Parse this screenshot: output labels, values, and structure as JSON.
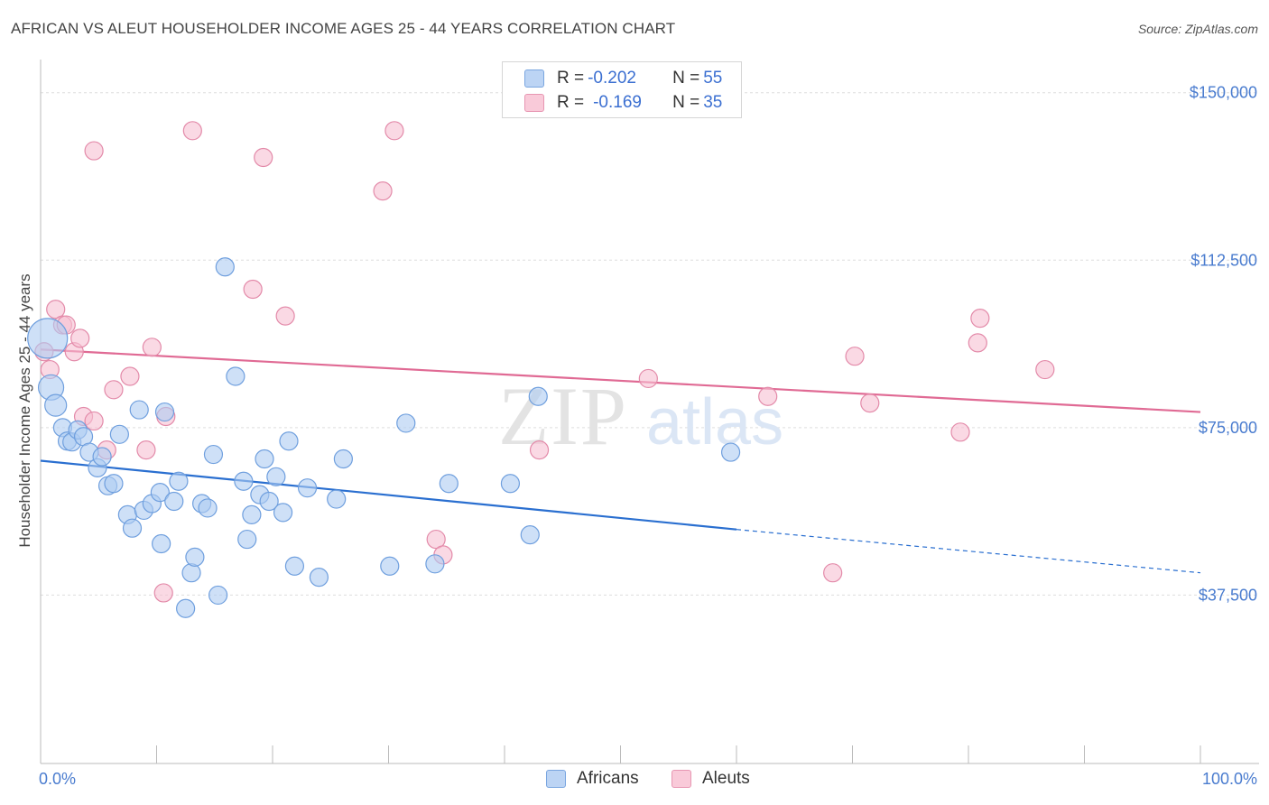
{
  "title": "AFRICAN VS ALEUT HOUSEHOLDER INCOME AGES 25 - 44 YEARS CORRELATION CHART",
  "source": "Source: ZipAtlas.com",
  "watermark": {
    "zip": "ZIP",
    "atlas": "atlas"
  },
  "colors": {
    "africans_fill": "#aecbf2",
    "africans_stroke": "#6f9fde",
    "africans_line": "#2a6fd0",
    "aleuts_fill": "#f7c0d2",
    "aleuts_stroke": "#e38aa9",
    "aleuts_line": "#e06a94",
    "tick_text": "#4a7ccf",
    "grid": "#dddddd"
  },
  "legend": {
    "rows": [
      {
        "r_label": "R = ",
        "r_value": "-0.202",
        "n_label": "N = ",
        "n_value": "55"
      },
      {
        "r_label": "R = ",
        "r_value": "-0.169",
        "n_label": "N = ",
        "n_value": "35"
      }
    ],
    "bottom": [
      "Africans",
      "Aleuts"
    ]
  },
  "chart_data": {
    "type": "scatter",
    "title": "AFRICAN VS ALEUT HOUSEHOLDER INCOME AGES 25 - 44 YEARS CORRELATION CHART",
    "xlabel": "",
    "ylabel": "Householder Income Ages 25 - 44 years",
    "xlim": [
      0,
      100
    ],
    "ylim": [
      0,
      155000
    ],
    "x_ticks": [
      "0.0%",
      "100.0%"
    ],
    "y_ticks": [
      {
        "value": 37500,
        "label": "$37,500"
      },
      {
        "value": 75000,
        "label": "$75,000"
      },
      {
        "value": 112500,
        "label": "$112,500"
      },
      {
        "value": 150000,
        "label": "$150,000"
      }
    ],
    "grid": true,
    "series": [
      {
        "name": "Africans",
        "trend": {
          "x0": 0,
          "y0": 67600,
          "x1": 60,
          "y1": 52200,
          "x_dashed_end": 100,
          "y_dashed_end": 42500
        },
        "points": [
          [
            0.6,
            95000,
            22
          ],
          [
            0.9,
            84000,
            14
          ],
          [
            1.3,
            80000,
            12
          ],
          [
            1.9,
            75000,
            10
          ],
          [
            2.3,
            72000,
            10
          ],
          [
            2.7,
            71800,
            10
          ],
          [
            3.2,
            74500,
            10
          ],
          [
            3.7,
            73000,
            10
          ],
          [
            4.2,
            69500,
            10
          ],
          [
            4.9,
            66000,
            10
          ],
          [
            5.3,
            68500,
            10
          ],
          [
            5.8,
            62000,
            10
          ],
          [
            6.3,
            62500,
            10
          ],
          [
            6.8,
            73500,
            10
          ],
          [
            7.5,
            55500,
            10
          ],
          [
            7.9,
            52500,
            10
          ],
          [
            8.5,
            79000,
            10
          ],
          [
            8.9,
            56500,
            10
          ],
          [
            9.6,
            58000,
            10
          ],
          [
            10.3,
            60500,
            10
          ],
          [
            10.4,
            49000,
            10
          ],
          [
            10.7,
            78500,
            10
          ],
          [
            11.5,
            58500,
            10
          ],
          [
            11.9,
            63000,
            10
          ],
          [
            12.5,
            34500,
            10
          ],
          [
            13.0,
            42500,
            10
          ],
          [
            13.3,
            46000,
            10
          ],
          [
            13.9,
            58000,
            10
          ],
          [
            14.4,
            57000,
            10
          ],
          [
            14.9,
            69000,
            10
          ],
          [
            15.3,
            37500,
            10
          ],
          [
            15.9,
            111000,
            10
          ],
          [
            16.8,
            86500,
            10
          ],
          [
            17.5,
            63000,
            10
          ],
          [
            17.8,
            50000,
            10
          ],
          [
            18.2,
            55500,
            10
          ],
          [
            18.9,
            60000,
            10
          ],
          [
            19.3,
            68000,
            10
          ],
          [
            19.7,
            58500,
            10
          ],
          [
            20.3,
            64000,
            10
          ],
          [
            20.9,
            56000,
            10
          ],
          [
            21.4,
            72000,
            10
          ],
          [
            21.9,
            44000,
            10
          ],
          [
            23.0,
            61500,
            10
          ],
          [
            24.0,
            41500,
            10
          ],
          [
            25.5,
            59000,
            10
          ],
          [
            26.1,
            68000,
            10
          ],
          [
            30.1,
            44000,
            10
          ],
          [
            31.5,
            76000,
            10
          ],
          [
            34.0,
            44500,
            10
          ],
          [
            35.2,
            62500,
            10
          ],
          [
            40.5,
            62500,
            10
          ],
          [
            42.2,
            51000,
            10
          ],
          [
            42.9,
            82000,
            10
          ],
          [
            59.5,
            69500,
            10
          ]
        ]
      },
      {
        "name": "Aleuts",
        "trend": {
          "x0": 0,
          "y0": 92500,
          "x1": 100,
          "y1": 78500
        },
        "points": [
          [
            0.3,
            92000,
            10
          ],
          [
            0.8,
            88000,
            10
          ],
          [
            1.3,
            101500,
            10
          ],
          [
            1.9,
            98000,
            10
          ],
          [
            2.2,
            98000,
            10
          ],
          [
            2.9,
            92000,
            10
          ],
          [
            3.4,
            95000,
            10
          ],
          [
            3.7,
            77500,
            10
          ],
          [
            4.6,
            76500,
            10
          ],
          [
            4.6,
            137000,
            10
          ],
          [
            5.7,
            70000,
            10
          ],
          [
            6.3,
            83500,
            10
          ],
          [
            7.7,
            86500,
            10
          ],
          [
            9.1,
            70000,
            10
          ],
          [
            9.6,
            93000,
            10
          ],
          [
            10.6,
            38000,
            10
          ],
          [
            10.8,
            77500,
            10
          ],
          [
            13.1,
            141500,
            10
          ],
          [
            18.3,
            106000,
            10
          ],
          [
            19.2,
            135500,
            10
          ],
          [
            21.1,
            100000,
            10
          ],
          [
            29.5,
            128000,
            10
          ],
          [
            30.5,
            141500,
            10
          ],
          [
            34.1,
            50000,
            10
          ],
          [
            34.7,
            46500,
            10
          ],
          [
            43.0,
            70000,
            10
          ],
          [
            52.4,
            86000,
            10
          ],
          [
            62.7,
            82000,
            10
          ],
          [
            68.3,
            42500,
            10
          ],
          [
            70.2,
            91000,
            10
          ],
          [
            71.5,
            80500,
            10
          ],
          [
            79.3,
            74000,
            10
          ],
          [
            80.8,
            94000,
            10
          ],
          [
            81.0,
            99500,
            10
          ],
          [
            86.6,
            88000,
            10
          ]
        ]
      }
    ]
  },
  "axis_labels": {
    "x_left": "0.0%",
    "x_right": "100.0%",
    "y_title": "Householder Income Ages 25 - 44 years"
  }
}
